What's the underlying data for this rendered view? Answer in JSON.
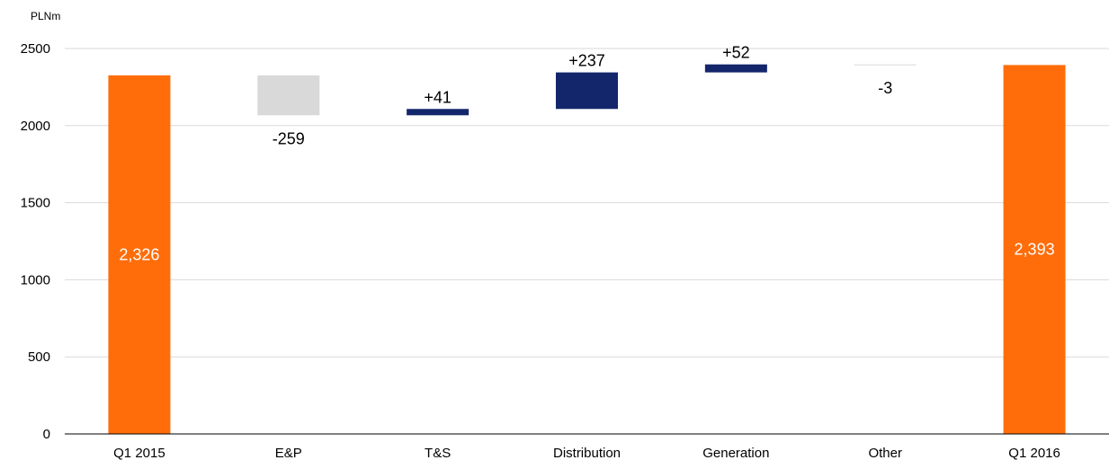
{
  "chart_data": {
    "type": "bar",
    "subtype": "waterfall",
    "unit_label": "PLNm",
    "categories": [
      "Q1 2015",
      "E&P",
      "T&S",
      "Distribution",
      "Generation",
      "Other",
      "Q1 2016"
    ],
    "steps": [
      {
        "category": "Q1 2015",
        "kind": "total",
        "value": 2326,
        "label": "2,326"
      },
      {
        "category": "E&P",
        "kind": "delta",
        "value": -259,
        "label": "-259"
      },
      {
        "category": "T&S",
        "kind": "delta",
        "value": 41,
        "label": "+41"
      },
      {
        "category": "Distribution",
        "kind": "delta",
        "value": 237,
        "label": "+237"
      },
      {
        "category": "Generation",
        "kind": "delta",
        "value": 52,
        "label": "+52"
      },
      {
        "category": "Other",
        "kind": "delta",
        "value": -3,
        "label": "-3"
      },
      {
        "category": "Q1 2016",
        "kind": "total",
        "value": 2393,
        "label": "2,393"
      }
    ],
    "ylim": [
      0,
      2500
    ],
    "yticks": [
      0,
      500,
      1000,
      1500,
      2000,
      2500
    ],
    "grid": true,
    "colors": {
      "total": "#ff6d0a",
      "increase": "#13266b",
      "decrease": "#d9d9d9",
      "grid": "#d9d9d9",
      "total_label": "#ffffff",
      "delta_label": "#000000"
    }
  }
}
